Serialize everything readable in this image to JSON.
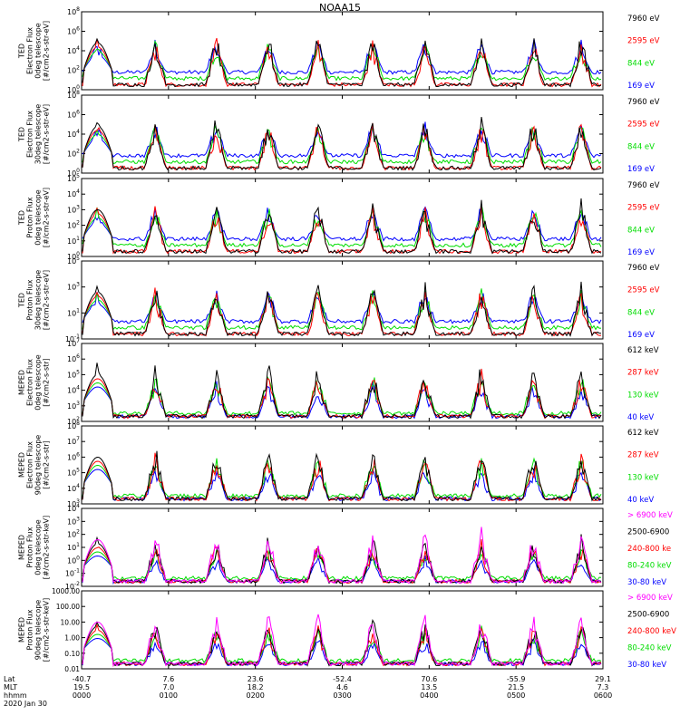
{
  "title": "NOAA15",
  "colors": {
    "blue": "#0000ff",
    "red": "#ff0000",
    "green": "#00dd00",
    "black": "#000000",
    "magenta": "#ff00ff"
  },
  "footer": {
    "labels": [
      "Lat",
      "MLT",
      "hhmm",
      "2020 Jan 30"
    ],
    "lat": [
      "-40.7",
      "7.6",
      "23.6",
      "-52.4",
      "70.6",
      "-55.9",
      "29.1"
    ],
    "mlt": [
      "19.5",
      "7.0",
      "18.2",
      "4.6",
      "13.5",
      "21.5",
      "7.3"
    ],
    "hhmm": [
      "0000",
      "0100",
      "0200",
      "0300",
      "0400",
      "0500",
      "0600"
    ]
  },
  "chart_data": [
    {
      "type": "line",
      "ylabel": [
        "TED",
        "Electron Flux",
        "0deg telescope",
        "[#/cm2-s-str-eV]"
      ],
      "yticks": [
        "10^0",
        "10^2",
        "10^4",
        "10^6",
        "10^8"
      ],
      "ylim_exp": [
        0,
        8
      ],
      "log": true,
      "x_hhmm": [
        "0000",
        "0100",
        "0200",
        "0300",
        "0400",
        "0500",
        "0600"
      ],
      "series": [
        {
          "name": "7960 eV",
          "color": "black",
          "description": "bursts during auroral zone crossings"
        },
        {
          "name": "2595 eV",
          "color": "red"
        },
        {
          "name": "844 eV",
          "color": "green"
        },
        {
          "name": "169 eV",
          "color": "blue",
          "baseline": "~10^2 background"
        }
      ]
    },
    {
      "type": "line",
      "ylabel": [
        "TED",
        "Electron Flux",
        "30deg telescope",
        "[#/cm2-s-str-eV]"
      ],
      "yticks": [
        "10^0",
        "10^2",
        "10^4",
        "10^6",
        "10^8"
      ],
      "ylim_exp": [
        0,
        8
      ],
      "log": true,
      "series": [
        {
          "name": "7960 eV",
          "color": "black"
        },
        {
          "name": "2595 eV",
          "color": "red"
        },
        {
          "name": "844 eV",
          "color": "green"
        },
        {
          "name": "169 eV",
          "color": "blue"
        }
      ]
    },
    {
      "type": "line",
      "ylabel": [
        "TED",
        "Proton Flux",
        "0deg telescope",
        "[#/cm2-s-str-eV]"
      ],
      "yticks": [
        "10^0",
        "10^1",
        "10^2",
        "10^3",
        "10^4",
        "10^5"
      ],
      "ylim_exp": [
        0,
        5
      ],
      "log": true,
      "series": [
        {
          "name": "7960 eV",
          "color": "black"
        },
        {
          "name": "2595 eV",
          "color": "red"
        },
        {
          "name": "844 eV",
          "color": "green"
        },
        {
          "name": "169 eV",
          "color": "blue"
        }
      ]
    },
    {
      "type": "line",
      "ylabel": [
        "TED",
        "Proton Flux",
        "30deg telescope",
        "[#/cm2-s-str-eV]"
      ],
      "yticks": [
        "10^-1",
        "10^1",
        "10^3",
        "10^5"
      ],
      "ylim_exp": [
        -1,
        5
      ],
      "log": true,
      "series": [
        {
          "name": "7960 eV",
          "color": "black"
        },
        {
          "name": "2595 eV",
          "color": "red"
        },
        {
          "name": "844 eV",
          "color": "green"
        },
        {
          "name": "169 eV",
          "color": "blue"
        }
      ]
    },
    {
      "type": "line",
      "ylabel": [
        "MEPED",
        "Electron Flux",
        "0deg telescope",
        "[#/cm2-s-str]"
      ],
      "yticks": [
        "10^2",
        "10^3",
        "10^4",
        "10^5",
        "10^6",
        "10^7"
      ],
      "ylim_exp": [
        2,
        7
      ],
      "log": true,
      "series": [
        {
          "name": "612 keV",
          "color": "black"
        },
        {
          "name": "287 keV",
          "color": "red"
        },
        {
          "name": "130 keV",
          "color": "green"
        },
        {
          "name": "40 keV",
          "color": "blue"
        }
      ]
    },
    {
      "type": "line",
      "ylabel": [
        "MEPED",
        "Electron Flux",
        "90deg telescope",
        "[#/cm2-s-str]"
      ],
      "yticks": [
        "10^3",
        "10^4",
        "10^5",
        "10^6",
        "10^7",
        "10^8"
      ],
      "ylim_exp": [
        3,
        8
      ],
      "log": true,
      "series": [
        {
          "name": "612 keV",
          "color": "black"
        },
        {
          "name": "287 keV",
          "color": "red"
        },
        {
          "name": "130 keV",
          "color": "green"
        },
        {
          "name": "40 keV",
          "color": "blue"
        }
      ]
    },
    {
      "type": "line",
      "ylabel": [
        "MEPED",
        "Proton Flux",
        "0deg telescope",
        "[#/cm2-s-str-keV]"
      ],
      "yticks": [
        "10^-2",
        "10^-1",
        "10^0",
        "10^1",
        "10^2",
        "10^3",
        "10^4"
      ],
      "ylim_exp": [
        -2,
        4
      ],
      "log": true,
      "series": [
        {
          "name": "> 6900 keV",
          "color": "magenta"
        },
        {
          "name": "2500-6900",
          "color": "black"
        },
        {
          "name": "240-800 ke",
          "color": "red"
        },
        {
          "name": "80-240 keV",
          "color": "green"
        },
        {
          "name": "30-80 keV",
          "color": "blue"
        }
      ]
    },
    {
      "type": "line",
      "ylabel": [
        "MEPED",
        "Proton Flux",
        "90deg telescope",
        "[#/cm2-s-str-keV]"
      ],
      "yticks": [
        "0.01",
        "0.10",
        "1.00",
        "10.00",
        "100.00",
        "1000.00"
      ],
      "ylim_exp": [
        -2,
        3
      ],
      "log": true,
      "series": [
        {
          "name": "> 6900 keV",
          "color": "magenta"
        },
        {
          "name": "2500-6900",
          "color": "black"
        },
        {
          "name": "240-800 keV",
          "color": "red"
        },
        {
          "name": "80-240 keV",
          "color": "green"
        },
        {
          "name": "30-80 keV",
          "color": "blue"
        }
      ]
    }
  ]
}
